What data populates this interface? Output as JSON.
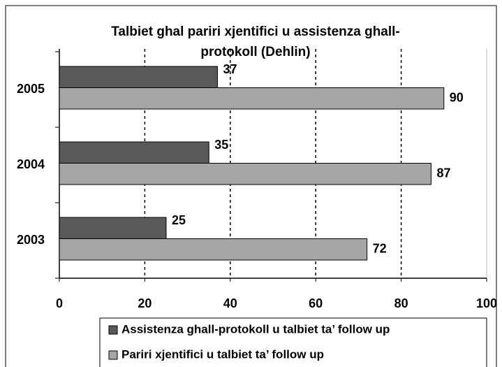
{
  "chart_data": {
    "type": "barh",
    "title": [
      "Talbiet ghal pariri xjentifici u assistenza ghall-",
      "protokoll (Dehlin)"
    ],
    "categories": [
      "2003",
      "2004",
      "2005"
    ],
    "series": [
      {
        "name": "Assistenza ghall-protokoll u talbiet ta’ follow up",
        "color": "#595959",
        "values": [
          25,
          35,
          37
        ]
      },
      {
        "name": "Pariri xjentifici u talbiet ta’ follow up",
        "color": "#a6a6a6",
        "values": [
          72,
          87,
          90
        ]
      }
    ],
    "xlim": [
      0,
      100
    ],
    "xticks": [
      0,
      20,
      40,
      60,
      80,
      100
    ],
    "grid": true,
    "legend": "bottom"
  }
}
